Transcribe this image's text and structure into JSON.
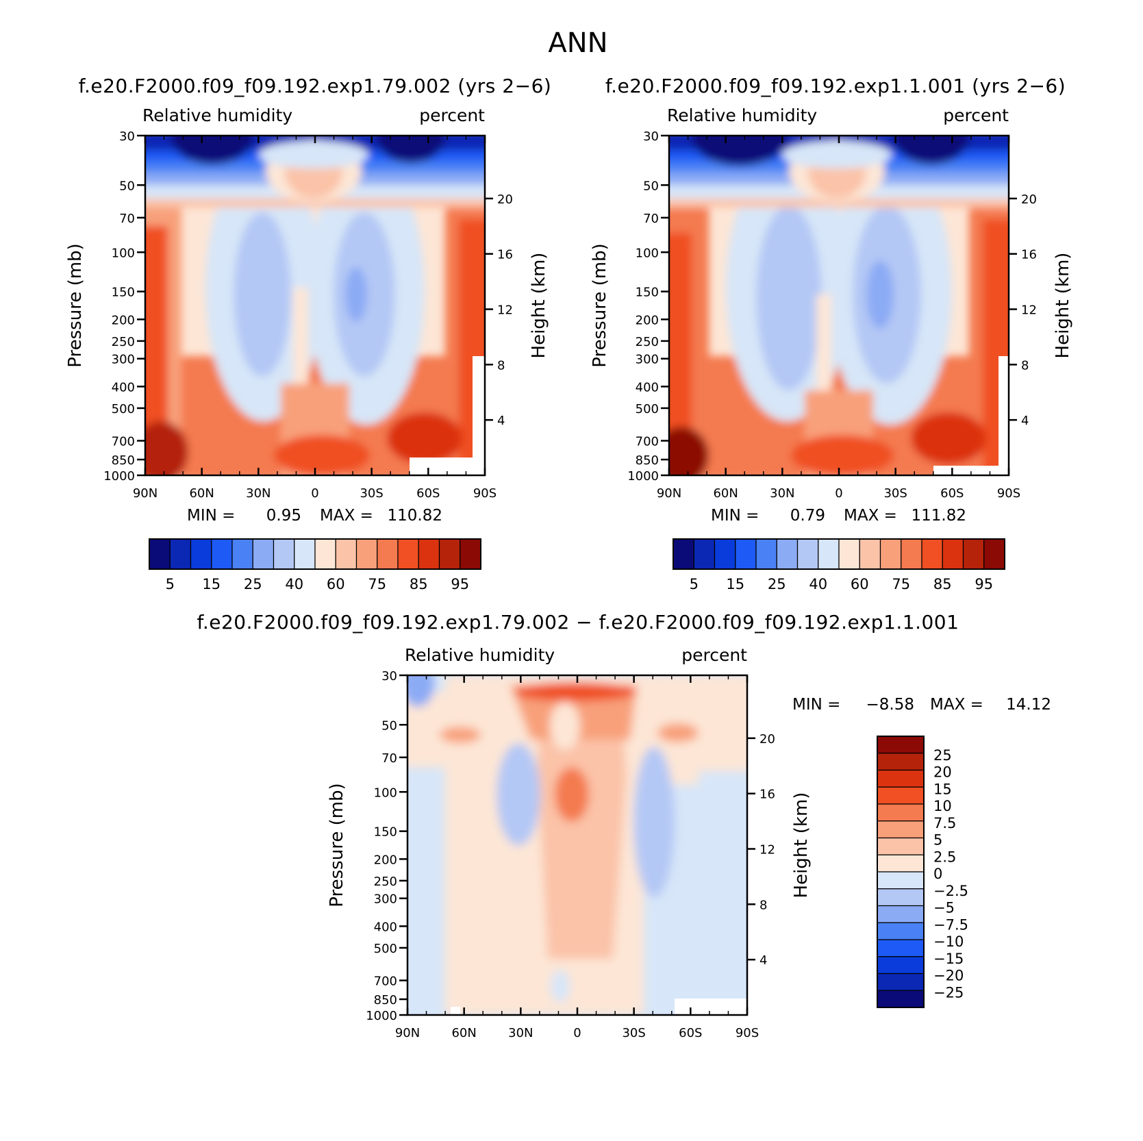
{
  "figure_title": "ANN",
  "chart_data": [
    {
      "type": "heatmap",
      "id": "case1",
      "title": "f.e20.F2000.f09_f09.192.exp1.79.002 (yrs 2−6)",
      "left_label": "Relative humidity",
      "right_label": "percent",
      "ylabel": "Pressure (mb)",
      "ylabel_right": "Height (km)",
      "x_ticks": [
        "90N",
        "60N",
        "30N",
        "0",
        "30S",
        "60S",
        "90S"
      ],
      "y_ticks": [
        "30",
        "50",
        "70",
        "100",
        "150",
        "200",
        "250",
        "300",
        "400",
        "500",
        "700",
        "850",
        "1000"
      ],
      "height_ticks": [
        "20",
        "16",
        "12",
        "8",
        "4"
      ],
      "ylim": [
        1000,
        30
      ],
      "xlim": [
        "90N",
        "90S"
      ],
      "min_label": "MIN =",
      "min_value": "0.95",
      "max_label": "MAX =",
      "max_value": "110.82",
      "levels": [
        "5",
        "15",
        "25",
        "40",
        "60",
        "75",
        "85",
        "95"
      ],
      "colors": [
        "#0a0a78",
        "#0a28b4",
        "#0a3cdc",
        "#1e5af5",
        "#4a82f5",
        "#8cabf5",
        "#b4c8f5",
        "#d7e6f8",
        "#fde6d6",
        "#fbc3a8",
        "#f8a07a",
        "#f47a50",
        "#f05023",
        "#db3310",
        "#b4230a",
        "#8c0a05"
      ]
    },
    {
      "type": "heatmap",
      "id": "case2",
      "title": "f.e20.F2000.f09_f09.192.exp1.1.001 (yrs 2−6)",
      "left_label": "Relative humidity",
      "right_label": "percent",
      "ylabel": "Pressure (mb)",
      "ylabel_right": "Height (km)",
      "x_ticks": [
        "90N",
        "60N",
        "30N",
        "0",
        "30S",
        "60S",
        "90S"
      ],
      "y_ticks": [
        "30",
        "50",
        "70",
        "100",
        "150",
        "200",
        "250",
        "300",
        "400",
        "500",
        "700",
        "850",
        "1000"
      ],
      "height_ticks": [
        "20",
        "16",
        "12",
        "8",
        "4"
      ],
      "ylim": [
        1000,
        30
      ],
      "xlim": [
        "90N",
        "90S"
      ],
      "min_label": "MIN =",
      "min_value": "0.79",
      "max_label": "MAX =",
      "max_value": "111.82",
      "levels": [
        "5",
        "15",
        "25",
        "40",
        "60",
        "75",
        "85",
        "95"
      ],
      "colors": [
        "#0a0a78",
        "#0a28b4",
        "#0a3cdc",
        "#1e5af5",
        "#4a82f5",
        "#8cabf5",
        "#b4c8f5",
        "#d7e6f8",
        "#fde6d6",
        "#fbc3a8",
        "#f8a07a",
        "#f47a50",
        "#f05023",
        "#db3310",
        "#b4230a",
        "#8c0a05"
      ]
    },
    {
      "type": "heatmap",
      "id": "diff",
      "title": "f.e20.F2000.f09_f09.192.exp1.79.002 − f.e20.F2000.f09_f09.192.exp1.1.001",
      "left_label": "Relative humidity",
      "right_label": "percent",
      "ylabel": "Pressure (mb)",
      "ylabel_right": "Height (km)",
      "x_ticks": [
        "90N",
        "60N",
        "30N",
        "0",
        "30S",
        "60S",
        "90S"
      ],
      "y_ticks": [
        "30",
        "50",
        "70",
        "100",
        "150",
        "200",
        "250",
        "300",
        "400",
        "500",
        "700",
        "850",
        "1000"
      ],
      "height_ticks": [
        "20",
        "16",
        "12",
        "8",
        "4"
      ],
      "ylim": [
        1000,
        30
      ],
      "xlim": [
        "90N",
        "90S"
      ],
      "min_label": "MIN =",
      "min_value": "−8.58",
      "max_label": "MAX =",
      "max_value": "14.12",
      "levels": [
        "25",
        "20",
        "15",
        "10",
        "7.5",
        "5",
        "2.5",
        "0",
        "−2.5",
        "−5",
        "−7.5",
        "−10",
        "−15",
        "−20",
        "−25"
      ],
      "colors": [
        "#8c0a05",
        "#b4230a",
        "#db3310",
        "#f05023",
        "#f47a50",
        "#f8a07a",
        "#fbc3a8",
        "#fde6d6",
        "#d7e6f8",
        "#b4c8f5",
        "#8cabf5",
        "#4a82f5",
        "#1e5af5",
        "#0a3cdc",
        "#0a28b4",
        "#0a0a78"
      ]
    }
  ]
}
